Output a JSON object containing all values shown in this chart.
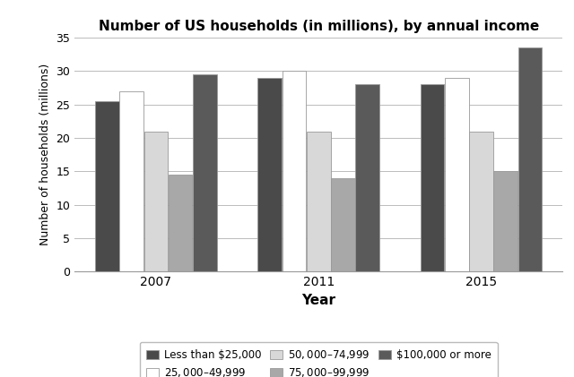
{
  "title": "Number of US households (in millions), by annual income",
  "xlabel": "Year",
  "ylabel": "Number of households (millions)",
  "years": [
    "2007",
    "2011",
    "2015"
  ],
  "categories": [
    "Less than $25,000",
    "$25,000–$49,999",
    "$50,000–$74,999",
    "$75,000–$99,999",
    "$100,000 or more"
  ],
  "values": {
    "2007": [
      25.5,
      27.0,
      21.0,
      14.5,
      29.5
    ],
    "2011": [
      29.0,
      30.0,
      21.0,
      14.0,
      28.0
    ],
    "2015": [
      28.0,
      29.0,
      21.0,
      15.0,
      33.5
    ]
  },
  "colors": [
    "#4a4a4a",
    "#ffffff",
    "#d8d8d8",
    "#a8a8a8",
    "#5a5a5a"
  ],
  "bar_edge_color": "#999999",
  "ylim": [
    0,
    35
  ],
  "yticks": [
    0,
    5,
    10,
    15,
    20,
    25,
    30,
    35
  ],
  "figsize": [
    6.4,
    4.21
  ],
  "dpi": 100,
  "group_width": 0.75,
  "legend_ncol": 3,
  "legend_fontsize": 8.5,
  "title_fontsize": 11,
  "xlabel_fontsize": 11,
  "ylabel_fontsize": 9
}
